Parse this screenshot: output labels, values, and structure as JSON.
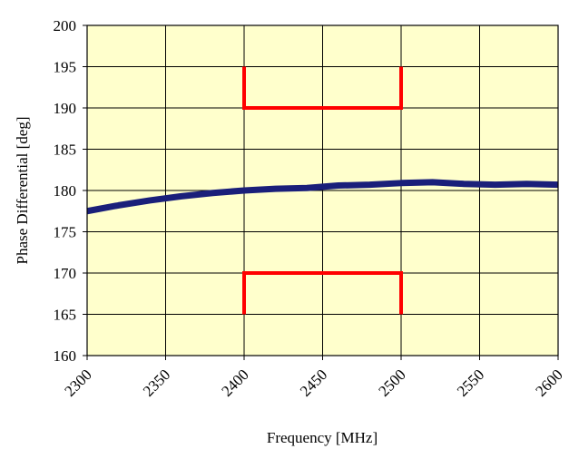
{
  "chart_data": {
    "type": "line",
    "title": "",
    "xlabel": "Frequency [MHz]",
    "ylabel": "Phase Differential [deg]",
    "xlim": [
      2300,
      2600
    ],
    "ylim": [
      160,
      200
    ],
    "x_ticks": [
      2300,
      2350,
      2400,
      2450,
      2500,
      2550,
      2600
    ],
    "y_ticks": [
      160,
      165,
      170,
      175,
      180,
      185,
      190,
      195,
      200
    ],
    "x_tick_labels": [
      "2300",
      "2350",
      "2400",
      "2450",
      "2500",
      "2550",
      "2600"
    ],
    "y_tick_labels": [
      "160",
      "165",
      "170",
      "175",
      "180",
      "185",
      "190",
      "195",
      "200"
    ],
    "grid": true,
    "plot_background": "#ffffcc",
    "series": [
      {
        "color": "#1a1f7a",
        "x": [
          2300,
          2320,
          2340,
          2360,
          2380,
          2400,
          2420,
          2440,
          2460,
          2480,
          2500,
          2520,
          2540,
          2560,
          2580,
          2600
        ],
        "y": [
          177.5,
          178.2,
          178.8,
          179.3,
          179.7,
          180.0,
          180.2,
          180.3,
          180.6,
          180.7,
          180.9,
          181.0,
          180.8,
          180.7,
          180.8,
          180.7
        ]
      }
    ],
    "limit_lines": [
      {
        "color": "#ff0000",
        "x": [
          2400,
          2400,
          2500,
          2500
        ],
        "y": [
          195,
          190,
          190,
          195
        ]
      },
      {
        "color": "#ff0000",
        "x": [
          2400,
          2400,
          2500,
          2500
        ],
        "y": [
          165,
          170,
          170,
          165
        ]
      }
    ]
  }
}
